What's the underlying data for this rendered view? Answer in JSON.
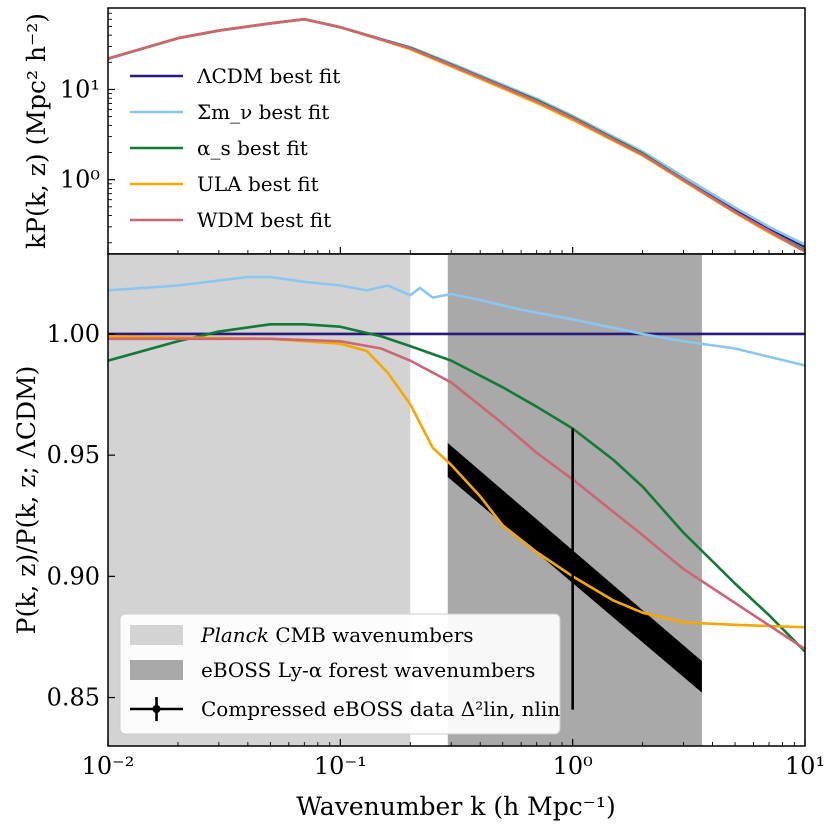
{
  "chart_data": [
    {
      "panel": "top",
      "type": "line",
      "xscale": "log",
      "yscale": "log",
      "xlim": [
        0.01,
        10
      ],
      "ylim": [
        0.15,
        80
      ],
      "ylabel": "kP(k, z) (Mpc² h⁻²)",
      "yticks": [
        1,
        10
      ],
      "ytick_labels": [
        "10⁰",
        "10¹"
      ],
      "legend": {
        "placement": "center-left",
        "entries": [
          "ΛCDM best fit",
          "Σm_ν best fit",
          "α_s best fit",
          "ULA best fit",
          "WDM best fit"
        ]
      },
      "series": [
        {
          "name": "ΛCDM best fit",
          "color": "#2a1a7e",
          "x": [
            0.01,
            0.02,
            0.03,
            0.05,
            0.07,
            0.1,
            0.15,
            0.2,
            0.3,
            0.5,
            0.7,
            1,
            2,
            3,
            5,
            7,
            10
          ],
          "y": [
            22,
            37,
            45,
            54,
            60,
            49,
            36,
            29,
            19,
            11,
            7.7,
            5,
            2,
            1.05,
            0.47,
            0.29,
            0.18
          ]
        },
        {
          "name": "Σm_ν best fit",
          "color": "#88c8ee",
          "x": [
            0.01,
            0.02,
            0.03,
            0.05,
            0.07,
            0.1,
            0.15,
            0.2,
            0.3,
            0.5,
            0.7,
            1,
            2,
            3,
            5,
            7,
            10
          ],
          "y": [
            22,
            37,
            45,
            54,
            60,
            49,
            36,
            29.5,
            19.5,
            11.3,
            7.9,
            5.1,
            2.05,
            1.08,
            0.49,
            0.3,
            0.19
          ]
        },
        {
          "name": "α_s best fit",
          "color": "#137a35",
          "x": [
            0.01,
            0.02,
            0.03,
            0.05,
            0.07,
            0.1,
            0.15,
            0.2,
            0.3,
            0.5,
            0.7,
            1,
            2,
            3,
            5,
            7,
            10
          ],
          "y": [
            21.9,
            37,
            45,
            54.1,
            60.1,
            49,
            36,
            29,
            18.9,
            10.9,
            7.6,
            4.9,
            1.95,
            1.0,
            0.44,
            0.27,
            0.165
          ]
        },
        {
          "name": "ULA best fit",
          "color": "#f7a800",
          "x": [
            0.01,
            0.02,
            0.03,
            0.05,
            0.07,
            0.1,
            0.15,
            0.2,
            0.3,
            0.5,
            0.7,
            1,
            2,
            3,
            5,
            7,
            10
          ],
          "y": [
            22,
            37,
            45,
            54,
            60,
            49,
            35.5,
            28,
            18,
            10.3,
            7.1,
            4.6,
            1.85,
            0.97,
            0.43,
            0.26,
            0.16
          ]
        },
        {
          "name": "WDM best fit",
          "color": "#cc6675",
          "x": [
            0.01,
            0.02,
            0.03,
            0.05,
            0.07,
            0.1,
            0.15,
            0.2,
            0.3,
            0.5,
            0.7,
            1,
            2,
            3,
            5,
            7,
            10
          ],
          "y": [
            22,
            37,
            45,
            54,
            60,
            49,
            35.8,
            28.6,
            18.6,
            10.7,
            7.4,
            4.8,
            1.9,
            0.99,
            0.44,
            0.27,
            0.16
          ]
        }
      ]
    },
    {
      "panel": "bottom",
      "type": "line",
      "xscale": "log",
      "xlim": [
        0.01,
        10
      ],
      "ylim": [
        0.83,
        1.033
      ],
      "xlabel": "Wavenumber k (h Mpc⁻¹)",
      "ylabel": "P(k, z)/P(k, z; ΛCDM)",
      "xticks": [
        0.01,
        0.1,
        1,
        10
      ],
      "xtick_labels": [
        "10⁻²",
        "10⁻¹",
        "10⁰",
        "10¹"
      ],
      "yticks": [
        0.85,
        0.9,
        0.95,
        1.0
      ],
      "ytick_labels": [
        "0.85",
        "0.90",
        "0.95",
        "1.00"
      ],
      "shaded_regions": [
        {
          "name": "Planck CMB wavenumbers",
          "x_range": [
            0.01,
            0.2
          ],
          "color": "#d3d3d3"
        },
        {
          "name": "eBOSS Ly-α forest wavenumbers",
          "x_range": [
            0.29,
            3.6
          ],
          "color": "#a9a9a9"
        }
      ],
      "band": {
        "x": [
          0.29,
          3.6
        ],
        "y_low": [
          0.941,
          0.852
        ],
        "y_high": [
          0.955,
          0.865
        ],
        "color": "#000000"
      },
      "errorbar": {
        "name": "Compressed eBOSS data Δ²_lin, n_lin",
        "x": 1.0,
        "y": 0.903,
        "y_low": 0.845,
        "y_high": 0.961
      },
      "legend": {
        "placement": "lower-left",
        "entries": [
          {
            "style": "italic",
            "text": "Planck",
            "rest": " CMB wavenumbers"
          },
          {
            "text": "eBOSS Ly-α forest wavenumbers"
          },
          {
            "text": "Compressed eBOSS data Δ²lin, nlin"
          }
        ]
      },
      "series": [
        {
          "name": "ΛCDM best fit",
          "color": "#2a1a7e",
          "x": [
            0.01,
            10
          ],
          "y": [
            1.0,
            1.0
          ]
        },
        {
          "name": "Σm_ν best fit",
          "color": "#88c8ee",
          "x": [
            0.01,
            0.02,
            0.04,
            0.05,
            0.07,
            0.1,
            0.13,
            0.16,
            0.2,
            0.22,
            0.25,
            0.3,
            0.4,
            0.6,
            1,
            2,
            3,
            5,
            10
          ],
          "y": [
            1.018,
            1.02,
            1.0235,
            1.0235,
            1.0215,
            1.02,
            1.018,
            1.02,
            1.016,
            1.019,
            1.015,
            1.0165,
            1.014,
            1.01,
            1.006,
            1.0,
            0.997,
            0.994,
            0.987
          ]
        },
        {
          "name": "α_s best fit",
          "color": "#137a35",
          "x": [
            0.01,
            0.02,
            0.03,
            0.05,
            0.07,
            0.1,
            0.15,
            0.2,
            0.3,
            0.5,
            0.7,
            1,
            1.5,
            2,
            3,
            5,
            7,
            10
          ],
          "y": [
            0.989,
            0.997,
            1.001,
            1.004,
            1.004,
            1.003,
            0.999,
            0.995,
            0.989,
            0.978,
            0.97,
            0.961,
            0.948,
            0.937,
            0.918,
            0.897,
            0.884,
            0.869
          ]
        },
        {
          "name": "ULA best fit",
          "color": "#f7a800",
          "x": [
            0.01,
            0.05,
            0.1,
            0.13,
            0.16,
            0.2,
            0.25,
            0.3,
            0.4,
            0.5,
            0.7,
            1,
            1.5,
            2,
            3,
            5,
            10
          ],
          "y": [
            0.999,
            0.998,
            0.996,
            0.993,
            0.984,
            0.971,
            0.953,
            0.946,
            0.933,
            0.921,
            0.91,
            0.9,
            0.89,
            0.885,
            0.881,
            0.88,
            0.879
          ]
        },
        {
          "name": "WDM best fit",
          "color": "#cc6675",
          "x": [
            0.01,
            0.05,
            0.1,
            0.15,
            0.2,
            0.3,
            0.5,
            0.7,
            1,
            2,
            3,
            5,
            10
          ],
          "y": [
            0.998,
            0.998,
            0.997,
            0.994,
            0.989,
            0.98,
            0.963,
            0.951,
            0.94,
            0.917,
            0.903,
            0.889,
            0.87
          ]
        }
      ]
    }
  ]
}
